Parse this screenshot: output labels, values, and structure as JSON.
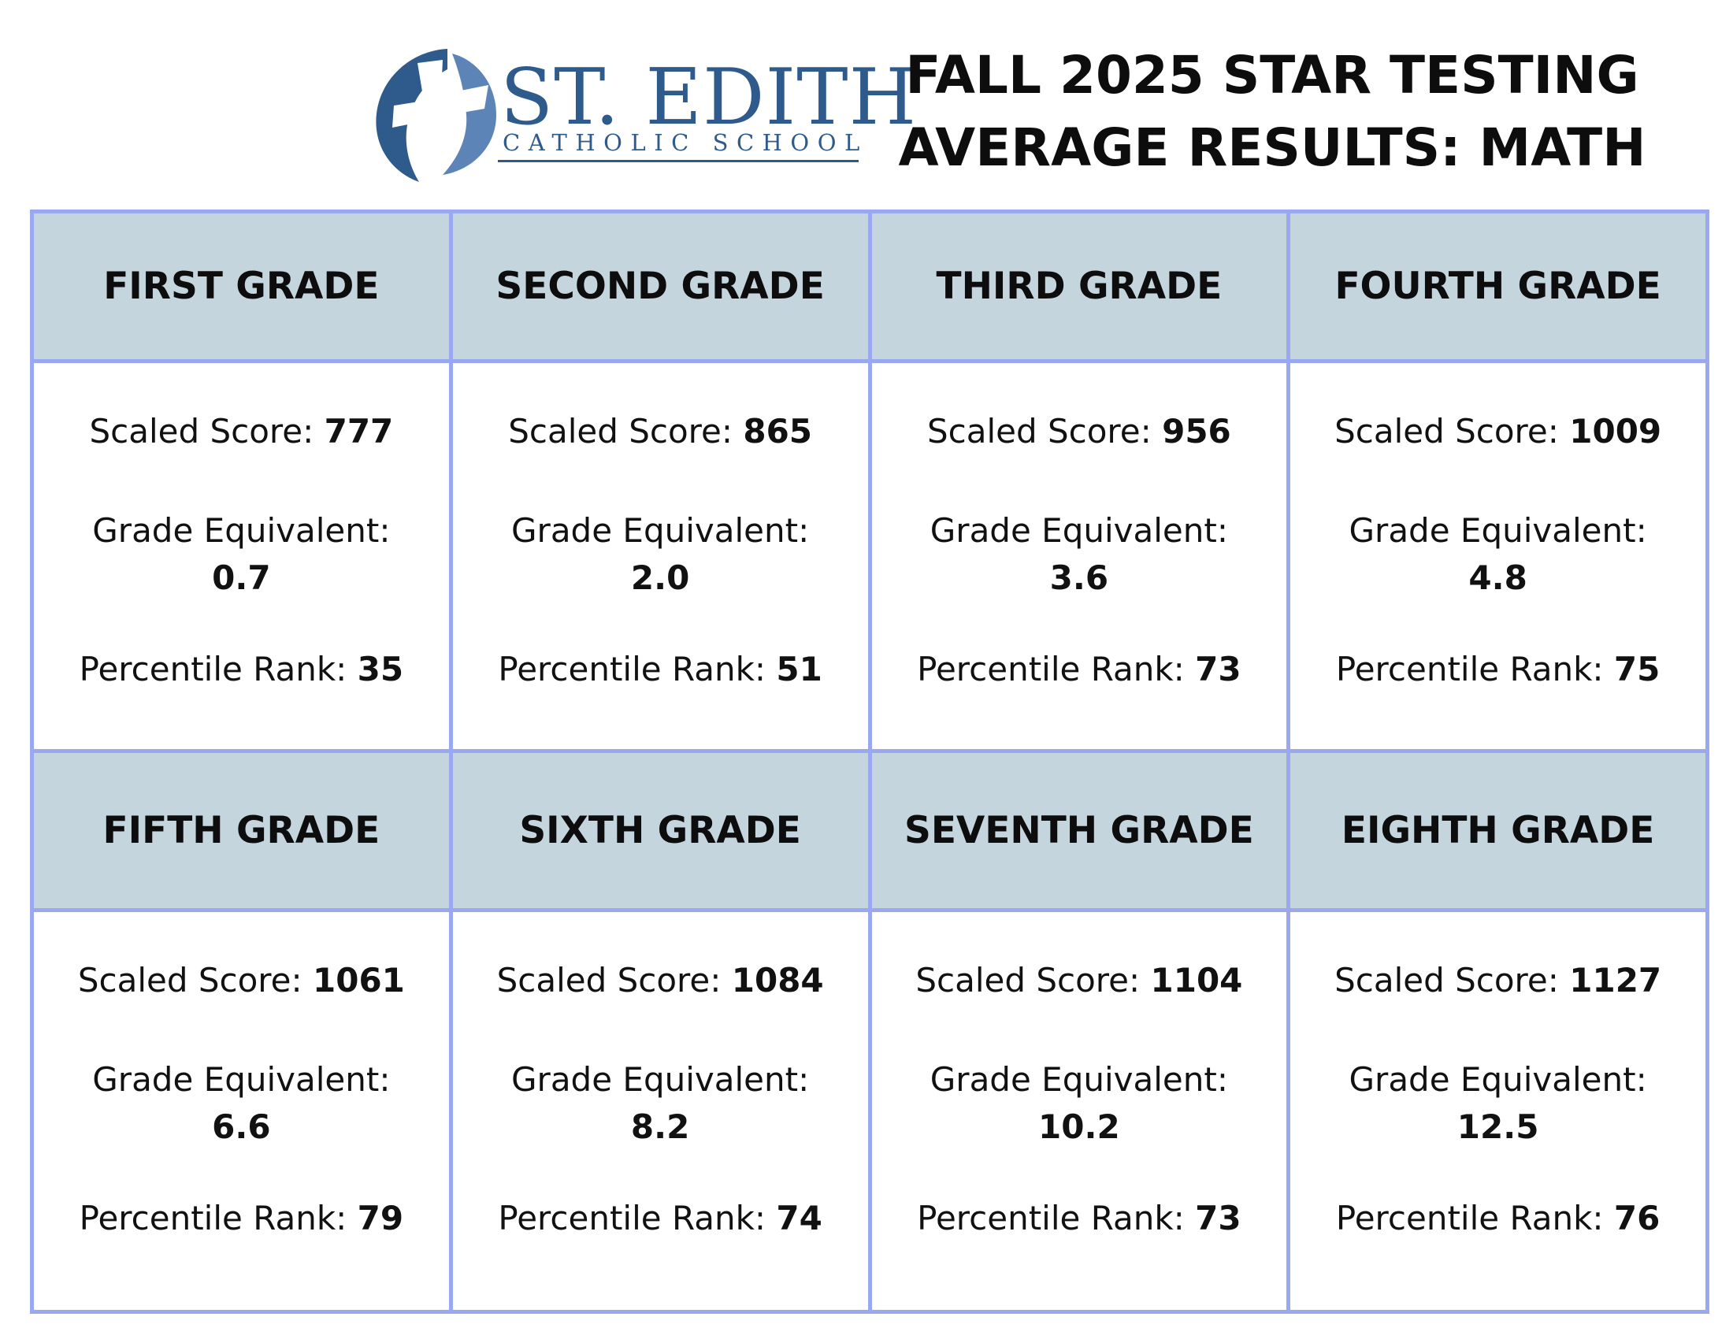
{
  "school": {
    "name": "ST. EDITH",
    "subtitle": "CATHOLIC SCHOOL",
    "logo_icon": "cross-emblem-icon",
    "brand_color": "#2f5b8c"
  },
  "title": {
    "line1": "FALL 2025 STAR TESTING",
    "line2": "AVERAGE RESULTS: MATH"
  },
  "labels": {
    "scaled": "Scaled Score: ",
    "grade_eq": "Grade Equivalent:",
    "percentile": "Percentile Rank: "
  },
  "colors": {
    "border": "#9aa8f2",
    "header_fill": "#c5d5de"
  },
  "grades": [
    {
      "name": "FIRST GRADE",
      "scaled": "777",
      "ge": "0.7",
      "pr": "35"
    },
    {
      "name": "SECOND GRADE",
      "scaled": "865",
      "ge": "2.0",
      "pr": "51"
    },
    {
      "name": "THIRD GRADE",
      "scaled": "956",
      "ge": "3.6",
      "pr": "73"
    },
    {
      "name": "FOURTH GRADE",
      "scaled": "1009",
      "ge": "4.8",
      "pr": "75"
    },
    {
      "name": "FIFTH GRADE",
      "scaled": "1061",
      "ge": "6.6",
      "pr": "79"
    },
    {
      "name": "SIXTH GRADE",
      "scaled": "1084",
      "ge": "8.2",
      "pr": "74"
    },
    {
      "name": "SEVENTH GRADE",
      "scaled": "1104",
      "ge": "10.2",
      "pr": "73"
    },
    {
      "name": "EIGHTH GRADE",
      "scaled": "1127",
      "ge": "12.5",
      "pr": "76"
    }
  ]
}
